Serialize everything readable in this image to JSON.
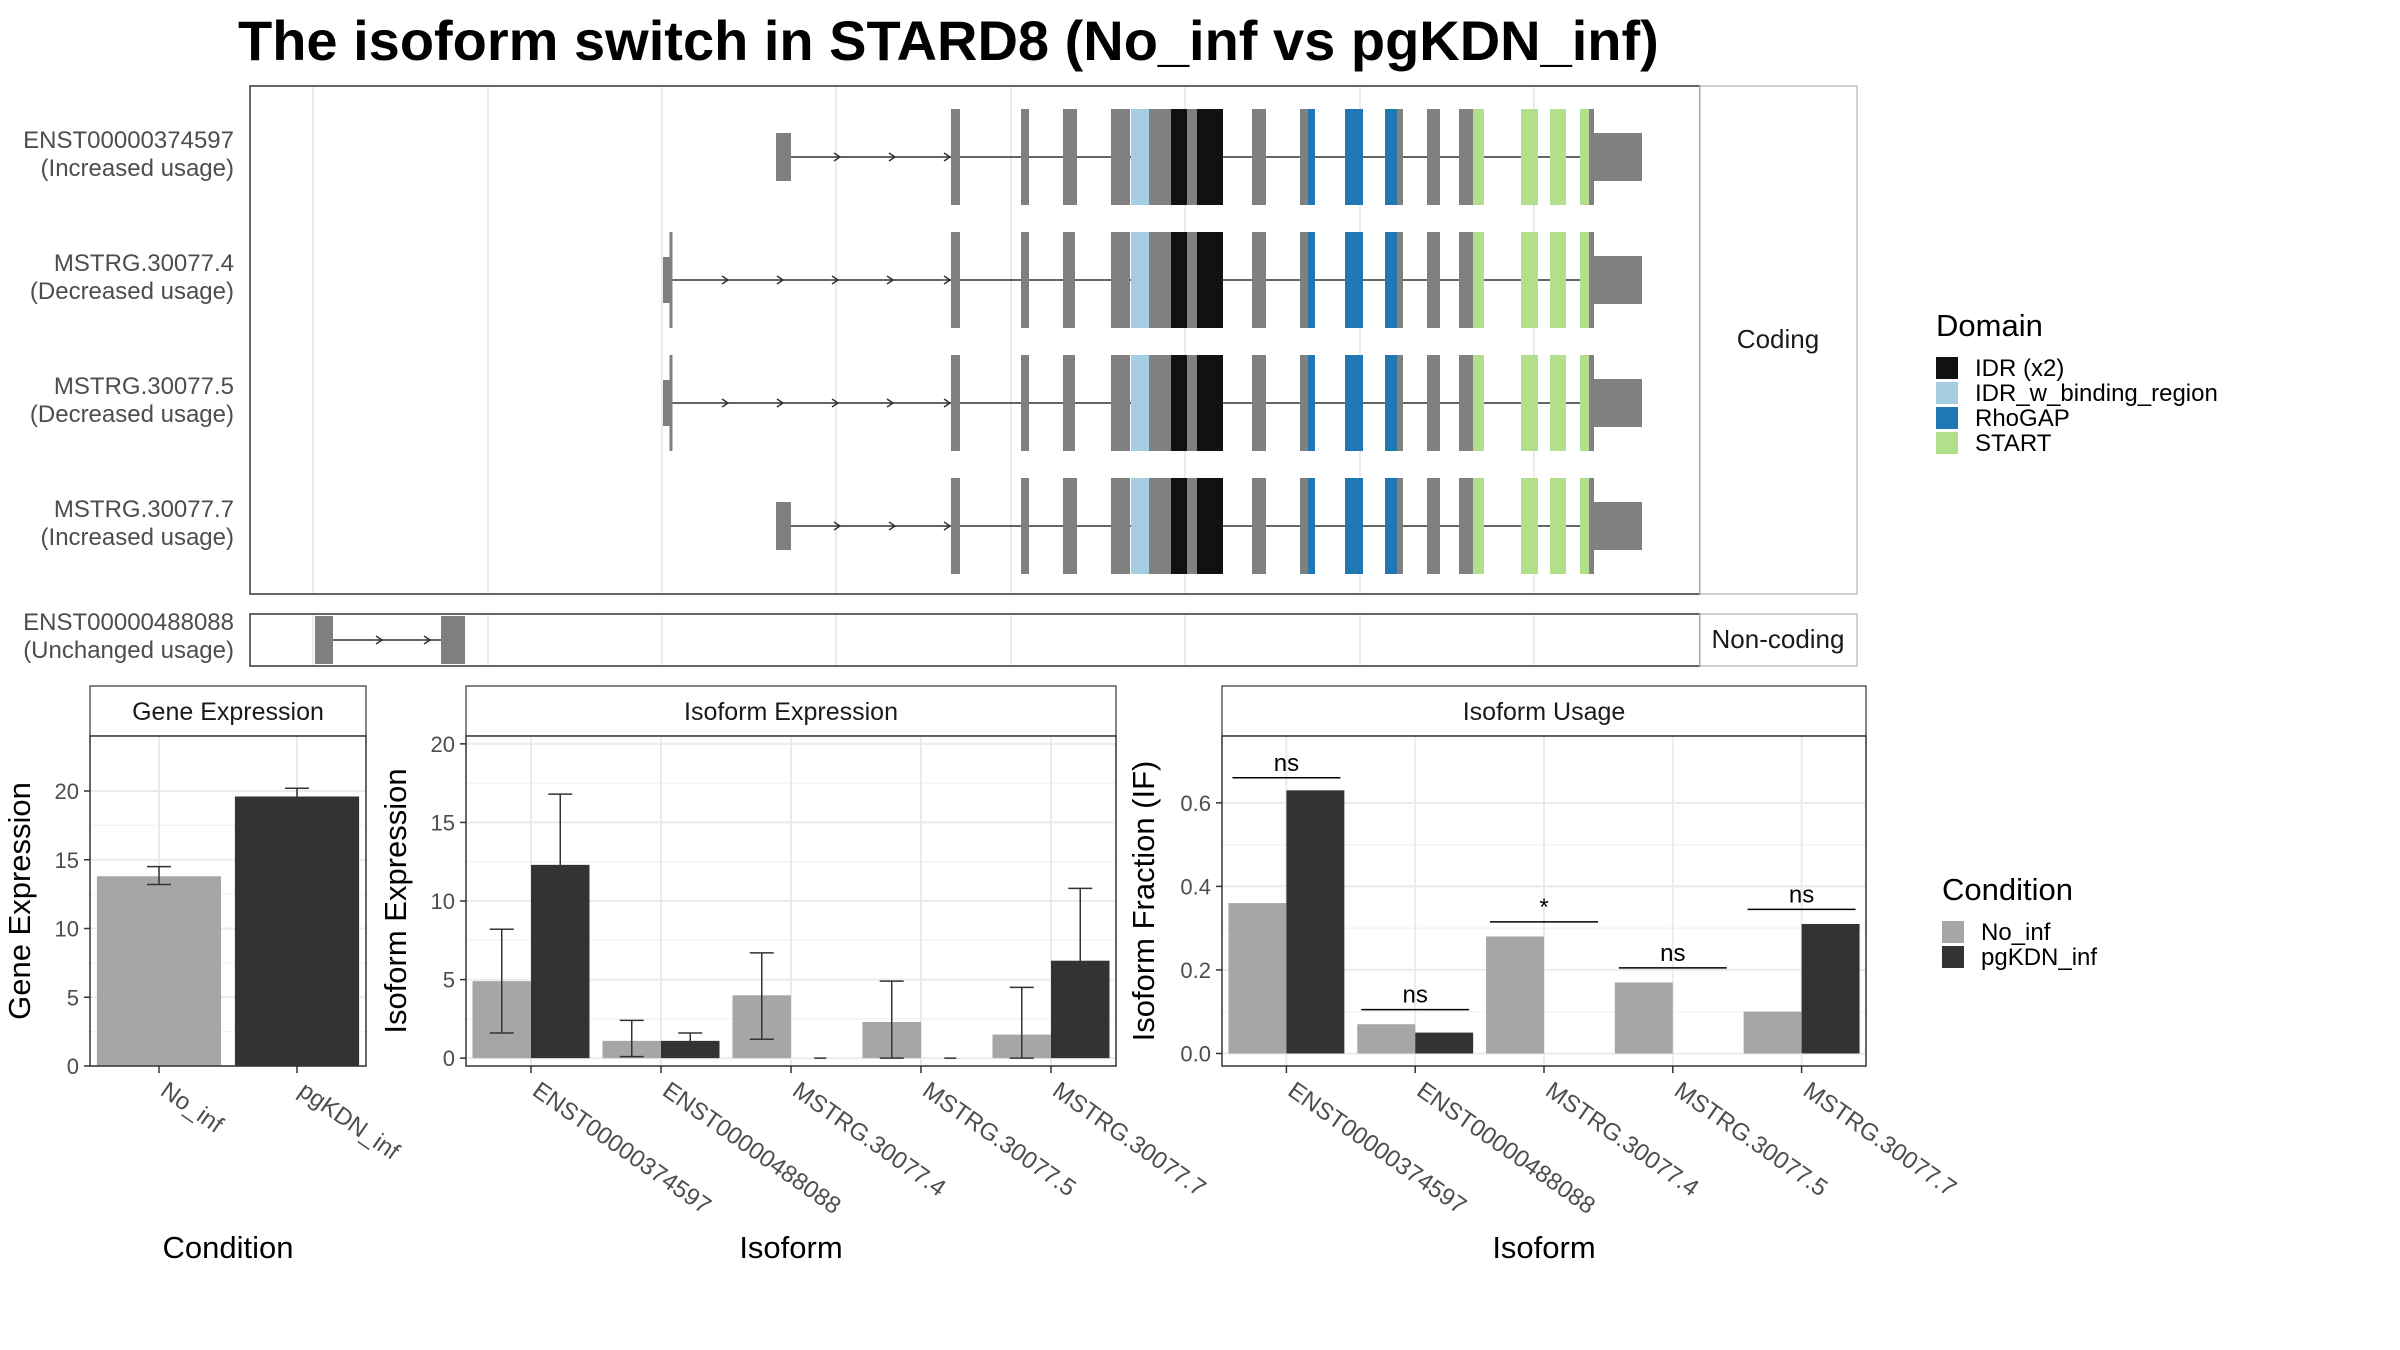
{
  "title": "The isoform switch in STARD8 (No_inf vs pgKDN_inf)",
  "colors": {
    "exon": "#808080",
    "no_inf": "#a6a6a6",
    "pgkdn_inf": "#333333",
    "domains": {
      "IDR (x2)": "#111111",
      "IDR_w_binding_region": "#a6cee3",
      "RhoGAP": "#1f78b4",
      "START": "#b2df8a"
    }
  },
  "strips": {
    "coding": "Coding",
    "noncoding": "Non-coding"
  },
  "domain_legend": {
    "title": "Domain",
    "items": [
      "IDR (x2)",
      "IDR_w_binding_region",
      "RhoGAP",
      "START"
    ]
  },
  "condition_legend": {
    "title": "Condition",
    "items": [
      "No_inf",
      "pgKDN_inf"
    ]
  },
  "transcripts": [
    {
      "id": "ENST00000374597",
      "usage": "(Increased usage)",
      "group": "coding",
      "start_exon": 1,
      "small_exon": true
    },
    {
      "id": "MSTRG.30077.4",
      "usage": "(Decreased usage)",
      "group": "coding",
      "start_exon": 0,
      "small_exon": false
    },
    {
      "id": "MSTRG.30077.5",
      "usage": "(Decreased usage)",
      "group": "coding",
      "start_exon": 0,
      "small_exon": false
    },
    {
      "id": "MSTRG.30077.7",
      "usage": "(Increased usage)",
      "group": "coding",
      "start_exon": 1,
      "small_exon": true
    },
    {
      "id": "ENST00000488088",
      "usage": "(Unchanged usage)",
      "group": "noncoding"
    }
  ],
  "chart_data": [
    {
      "type": "bar",
      "panel_title": "Gene Expression",
      "xlabel": "Condition",
      "ylabel": "Gene Expression",
      "categories": [
        "No_inf",
        "pgKDN_inf"
      ],
      "ylim": [
        0,
        24
      ],
      "yticks": [
        0,
        5,
        10,
        15,
        20
      ],
      "series": [
        {
          "name": "No_inf",
          "values": [
            13.8,
            null
          ],
          "err_low": [
            13.2,
            null
          ],
          "err_high": [
            14.5,
            null
          ]
        },
        {
          "name": "pgKDN_inf",
          "values": [
            null,
            19.6
          ],
          "err_low": [
            null,
            19.1
          ],
          "err_high": [
            null,
            20.2
          ]
        }
      ]
    },
    {
      "type": "bar",
      "panel_title": "Isoform Expression",
      "xlabel": "Isoform",
      "ylabel": "Isoform Expression",
      "categories": [
        "ENST00000374597",
        "ENST00000488088",
        "MSTRG.30077.4",
        "MSTRG.30077.5",
        "MSTRG.30077.7"
      ],
      "ylim": [
        -0.5,
        20.5
      ],
      "yticks": [
        0,
        5,
        10,
        15,
        20
      ],
      "series": [
        {
          "name": "No_inf",
          "values": [
            4.9,
            1.1,
            4.0,
            2.3,
            1.5
          ],
          "err_low": [
            1.6,
            0.1,
            1.2,
            0.0,
            0.0
          ],
          "err_high": [
            8.2,
            2.4,
            6.7,
            4.9,
            4.5
          ]
        },
        {
          "name": "pgKDN_inf",
          "values": [
            12.3,
            1.1,
            0.0,
            0.0,
            6.2
          ],
          "err_low": [
            7.8,
            0.4,
            0.0,
            0.0,
            1.6
          ],
          "err_high": [
            16.8,
            1.6,
            0.0,
            0.0,
            10.8
          ]
        }
      ]
    },
    {
      "type": "bar",
      "panel_title": "Isoform Usage",
      "xlabel": "Isoform",
      "ylabel": "Isoform Fraction (IF)",
      "categories": [
        "ENST00000374597",
        "ENST00000488088",
        "MSTRG.30077.4",
        "MSTRG.30077.5",
        "MSTRG.30077.7"
      ],
      "ylim": [
        -0.03,
        0.76
      ],
      "yticks": [
        0.0,
        0.2,
        0.4,
        0.6
      ],
      "ytick_labels": [
        "0.0",
        "0.2",
        "0.4",
        "0.6"
      ],
      "series": [
        {
          "name": "No_inf",
          "values": [
            0.36,
            0.07,
            0.28,
            0.17,
            0.1
          ]
        },
        {
          "name": "pgKDN_inf",
          "values": [
            0.63,
            0.05,
            0.0,
            0.0,
            0.31
          ]
        }
      ],
      "significance": [
        {
          "label": "ns",
          "y": 0.66
        },
        {
          "label": "ns",
          "y": 0.105
        },
        {
          "label": "*",
          "y": 0.315
        },
        {
          "label": "ns",
          "y": 0.205
        },
        {
          "label": "ns",
          "y": 0.345
        }
      ]
    }
  ]
}
